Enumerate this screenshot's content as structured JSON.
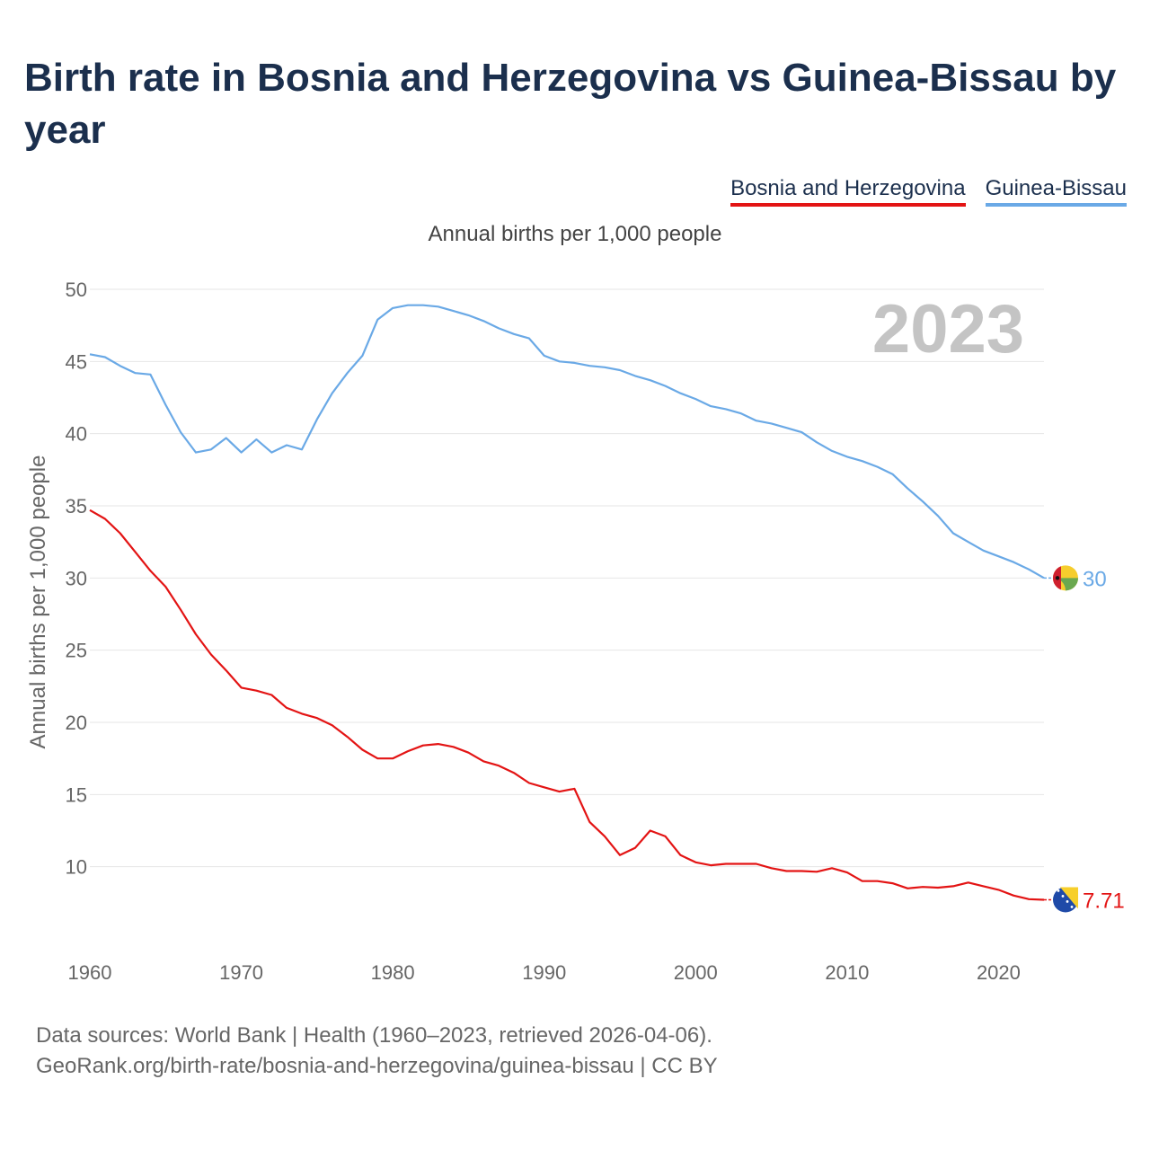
{
  "title": "Birth rate in Bosnia and Herzegovina vs Guinea-Bissau by year",
  "legend": [
    "Bosnia and Herzegovina",
    "Guinea-Bissau"
  ],
  "subtitle": "Annual births per 1,000 people",
  "source_line1": "Data sources: World Bank | Health (1960–2023, retrieved 2026-04-06).",
  "source_line2": "GeoRank.org/birth-rate/bosnia-and-herzegovina/guinea-bissau | CC BY",
  "colors": {
    "bih": "#e31414",
    "gnb": "#6aa9e6",
    "grid": "#e6e6e6",
    "year": "#c4c4c4"
  },
  "chart_data": {
    "type": "line",
    "title": "Birth rate in Bosnia and Herzegovina vs Guinea-Bissau by year",
    "xlabel": "",
    "ylabel": "Annual births per 1,000 people",
    "xlim": [
      1960,
      2023
    ],
    "ylim": [
      5,
      50
    ],
    "xticks": [
      1960,
      1970,
      1980,
      1990,
      2000,
      2010,
      2020
    ],
    "yticks": [
      10,
      15,
      20,
      25,
      30,
      35,
      40,
      45,
      50
    ],
    "year_label": "2023",
    "x": [
      1960,
      1961,
      1962,
      1963,
      1964,
      1965,
      1966,
      1967,
      1968,
      1969,
      1970,
      1971,
      1972,
      1973,
      1974,
      1975,
      1976,
      1977,
      1978,
      1979,
      1980,
      1981,
      1982,
      1983,
      1984,
      1985,
      1986,
      1987,
      1988,
      1989,
      1990,
      1991,
      1992,
      1993,
      1994,
      1995,
      1996,
      1997,
      1998,
      1999,
      2000,
      2001,
      2002,
      2003,
      2004,
      2005,
      2006,
      2007,
      2008,
      2009,
      2010,
      2011,
      2012,
      2013,
      2014,
      2015,
      2016,
      2017,
      2018,
      2019,
      2020,
      2021,
      2022,
      2023
    ],
    "series": [
      {
        "name": "Bosnia and Herzegovina",
        "end_label": "7.71",
        "values": [
          34.7,
          34.1,
          33.1,
          31.8,
          30.5,
          29.4,
          27.8,
          26.1,
          24.7,
          23.6,
          22.4,
          22.2,
          21.9,
          21.0,
          20.6,
          20.3,
          19.8,
          19.0,
          18.1,
          17.5,
          17.5,
          18.0,
          18.4,
          18.5,
          18.3,
          17.9,
          17.3,
          17.0,
          16.5,
          15.8,
          15.5,
          15.2,
          15.4,
          13.1,
          12.1,
          10.8,
          11.3,
          12.5,
          12.1,
          10.8,
          10.3,
          10.1,
          10.2,
          10.2,
          10.2,
          9.9,
          9.7,
          9.7,
          9.65,
          9.9,
          9.6,
          9.0,
          9.0,
          8.85,
          8.5,
          8.6,
          8.55,
          8.65,
          8.9,
          8.65,
          8.4,
          8.0,
          7.75,
          7.71
        ]
      },
      {
        "name": "Guinea-Bissau",
        "end_label": "30",
        "values": [
          45.5,
          45.3,
          44.7,
          44.2,
          44.1,
          42.0,
          40.1,
          38.7,
          38.9,
          39.7,
          38.7,
          39.6,
          38.7,
          39.2,
          38.9,
          41.0,
          42.8,
          44.2,
          45.4,
          47.9,
          48.7,
          48.9,
          48.9,
          48.8,
          48.5,
          48.2,
          47.8,
          47.3,
          46.9,
          46.6,
          45.4,
          45.0,
          44.9,
          44.7,
          44.6,
          44.4,
          44.0,
          43.7,
          43.3,
          42.8,
          42.4,
          41.9,
          41.7,
          41.4,
          40.9,
          40.7,
          40.4,
          40.1,
          39.4,
          38.8,
          38.4,
          38.1,
          37.7,
          37.2,
          36.2,
          35.3,
          34.3,
          33.1,
          32.5,
          31.9,
          31.5,
          31.1,
          30.6,
          30.0
        ]
      }
    ]
  }
}
